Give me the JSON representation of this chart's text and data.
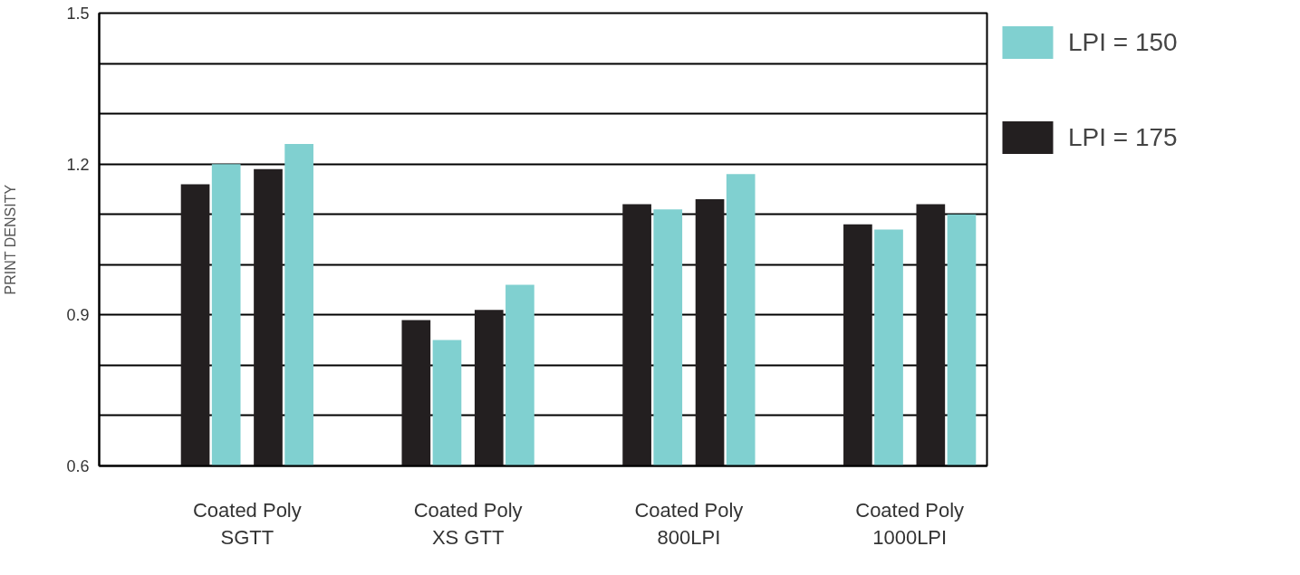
{
  "chart_data": {
    "type": "bar",
    "ylabel": "PRINT DENSITY",
    "categories": [
      "Coated Poly\nSGTT",
      "Coated Poly\nXS GTT",
      "Coated Poly\n800LPI",
      "Coated Poly\n1000LPI"
    ],
    "series": [
      {
        "name": "LPI = 175",
        "color": "#231f20",
        "values": [
          1.16,
          0.89,
          1.12,
          1.08
        ]
      },
      {
        "name": "LPI = 150",
        "color": "#80d0d0",
        "values": [
          1.2,
          0.85,
          1.11,
          1.07
        ]
      },
      {
        "color": "#231f20",
        "values": [
          1.19,
          0.91,
          1.13,
          1.12
        ]
      },
      {
        "color": "#80d0d0",
        "values": [
          1.24,
          0.96,
          1.18,
          1.1
        ]
      }
    ],
    "ylim": [
      0.6,
      1.5
    ],
    "yticks": [
      0.6,
      {
        "value": 0.7,
        "label": null
      },
      {
        "value": 0.8,
        "label": null
      },
      0.9,
      {
        "value": 1.0,
        "label": null
      },
      {
        "value": 1.1,
        "label": null
      },
      1.2,
      {
        "value": 1.3,
        "label": null
      },
      {
        "value": 1.4,
        "label": null
      },
      1.5
    ],
    "grid": "y",
    "legend": "right"
  }
}
